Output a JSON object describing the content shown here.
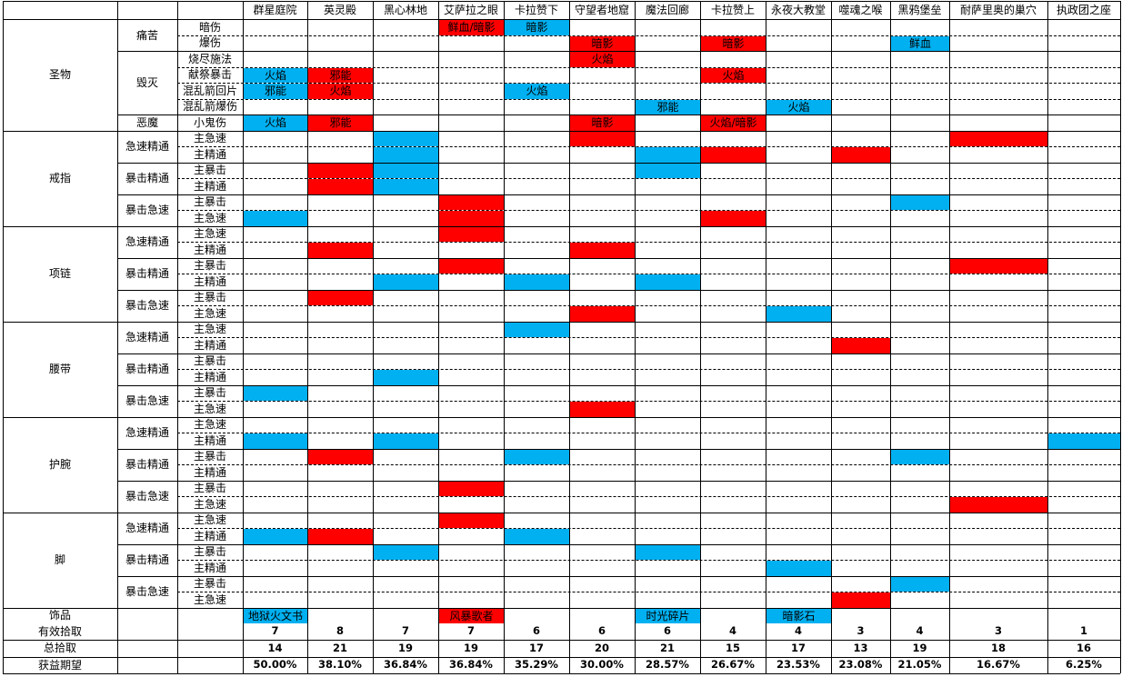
{
  "header": {
    "dungeons": [
      "群星庭院",
      "英灵殿",
      "黑心林地",
      "艾萨拉之眼",
      "卡拉赞下",
      "守望者地窟",
      "魔法回廊",
      "卡拉赞上",
      "永夜大教堂",
      "噬魂之喉",
      "黑鸦堡垒",
      "耐萨里奥的巢穴",
      "执政团之座"
    ]
  },
  "sections": [
    {
      "label": "圣物",
      "groups": [
        {
          "label": "痛苦",
          "rows": [
            "暗伤",
            "爆伤"
          ]
        },
        {
          "label": "毁灭",
          "rows": [
            "烧尽施法",
            "献祭暴击",
            "混乱箭回片",
            "混乱箭爆伤"
          ]
        },
        {
          "label": "恶魔",
          "rows": [
            "小鬼伤"
          ]
        }
      ]
    },
    {
      "label": "戒指",
      "groups": [
        {
          "label": "急速精通",
          "rows": [
            "主急速",
            "主精通"
          ]
        },
        {
          "label": "暴击精通",
          "rows": [
            "主暴击",
            "主精通"
          ]
        },
        {
          "label": "暴击急速",
          "rows": [
            "主暴击",
            "主急速"
          ]
        }
      ]
    },
    {
      "label": "项链",
      "groups": [
        {
          "label": "急速精通",
          "rows": [
            "主急速",
            "主精通"
          ]
        },
        {
          "label": "暴击精通",
          "rows": [
            "主暴击",
            "主精通"
          ]
        },
        {
          "label": "暴击急速",
          "rows": [
            "主暴击",
            "主急速"
          ]
        }
      ]
    },
    {
      "label": "腰带",
      "groups": [
        {
          "label": "急速精通",
          "rows": [
            "主急速",
            "主精通"
          ]
        },
        {
          "label": "暴击精通",
          "rows": [
            "主暴击",
            "主精通"
          ]
        },
        {
          "label": "暴击急速",
          "rows": [
            "主暴击",
            "主急速"
          ]
        }
      ]
    },
    {
      "label": "护腕",
      "groups": [
        {
          "label": "急速精通",
          "rows": [
            "主急速",
            "主精通"
          ]
        },
        {
          "label": "暴击精通",
          "rows": [
            "主暴击",
            "主精通"
          ]
        },
        {
          "label": "暴击急速",
          "rows": [
            "主暴击",
            "主急速"
          ]
        }
      ]
    },
    {
      "label": "脚",
      "groups": [
        {
          "label": "急速精通",
          "rows": [
            "主急速",
            "主精通"
          ]
        },
        {
          "label": "暴击精通",
          "rows": [
            "主暴击",
            "主精通"
          ]
        },
        {
          "label": "暴击急速",
          "rows": [
            "主暴击",
            "主急速"
          ]
        }
      ]
    }
  ],
  "trinket_row": {
    "label": "饰品"
  },
  "footer": [
    {
      "label": "有效拾取",
      "values": [
        "7",
        "8",
        "7",
        "7",
        "6",
        "6",
        "6",
        "4",
        "4",
        "3",
        "4",
        "3",
        "1"
      ]
    },
    {
      "label": "总拾取",
      "values": [
        "14",
        "21",
        "19",
        "19",
        "17",
        "20",
        "21",
        "15",
        "17",
        "13",
        "19",
        "18",
        "16"
      ]
    },
    {
      "label": "获益期望",
      "values": [
        "50.00%",
        "38.10%",
        "36.84%",
        "36.84%",
        "35.29%",
        "30.00%",
        "28.57%",
        "26.67%",
        "23.53%",
        "23.08%",
        "21.05%",
        "16.67%",
        "6.25%"
      ]
    }
  ],
  "colors": {
    "red": "#ff0000",
    "blue": "#00b0f0",
    "grid": "#000000"
  },
  "marks": [
    {
      "row": 0,
      "col": 3,
      "color": "red",
      "text": "鲜血/暗影"
    },
    {
      "row": 0,
      "col": 4,
      "color": "blue",
      "text": "暗影"
    },
    {
      "row": 1,
      "col": 5,
      "color": "red",
      "text": "暗影"
    },
    {
      "row": 1,
      "col": 7,
      "color": "red",
      "text": "暗影"
    },
    {
      "row": 1,
      "col": 10,
      "color": "blue",
      "text": "鲜血"
    },
    {
      "row": 2,
      "col": 5,
      "color": "red",
      "text": "火焰"
    },
    {
      "row": 3,
      "col": 0,
      "color": "blue",
      "text": "火焰"
    },
    {
      "row": 3,
      "col": 1,
      "color": "red",
      "text": "邪能"
    },
    {
      "row": 3,
      "col": 7,
      "color": "red",
      "text": "火焰"
    },
    {
      "row": 4,
      "col": 0,
      "color": "blue",
      "text": "邪能"
    },
    {
      "row": 4,
      "col": 1,
      "color": "red",
      "text": "火焰"
    },
    {
      "row": 4,
      "col": 4,
      "color": "blue",
      "text": "火焰"
    },
    {
      "row": 5,
      "col": 6,
      "color": "blue",
      "text": "邪能"
    },
    {
      "row": 5,
      "col": 8,
      "color": "blue",
      "text": "火焰"
    },
    {
      "row": 6,
      "col": 0,
      "color": "blue",
      "text": "火焰"
    },
    {
      "row": 6,
      "col": 1,
      "color": "red",
      "text": "邪能"
    },
    {
      "row": 6,
      "col": 5,
      "color": "red",
      "text": "暗影"
    },
    {
      "row": 6,
      "col": 7,
      "color": "red",
      "text": "火焰/暗影"
    },
    {
      "row": 7,
      "col": 5,
      "color": "red"
    },
    {
      "row": 7,
      "col": 11,
      "color": "red"
    },
    {
      "row": 7,
      "col": 2,
      "color": "blue"
    },
    {
      "row": 8,
      "col": 2,
      "color": "blue"
    },
    {
      "row": 8,
      "col": 6,
      "color": "blue"
    },
    {
      "row": 8,
      "col": 7,
      "color": "red"
    },
    {
      "row": 8,
      "col": 9,
      "color": "red"
    },
    {
      "row": 9,
      "col": 1,
      "color": "red"
    },
    {
      "row": 9,
      "col": 2,
      "color": "blue"
    },
    {
      "row": 9,
      "col": 6,
      "color": "blue"
    },
    {
      "row": 10,
      "col": 1,
      "color": "red"
    },
    {
      "row": 10,
      "col": 2,
      "color": "blue"
    },
    {
      "row": 11,
      "col": 3,
      "color": "red"
    },
    {
      "row": 11,
      "col": 10,
      "color": "blue"
    },
    {
      "row": 12,
      "col": 0,
      "color": "blue"
    },
    {
      "row": 12,
      "col": 3,
      "color": "red"
    },
    {
      "row": 12,
      "col": 7,
      "color": "red"
    },
    {
      "row": 13,
      "col": 3,
      "color": "red"
    },
    {
      "row": 14,
      "col": 1,
      "color": "red"
    },
    {
      "row": 14,
      "col": 5,
      "color": "red"
    },
    {
      "row": 15,
      "col": 3,
      "color": "red"
    },
    {
      "row": 15,
      "col": 11,
      "color": "red"
    },
    {
      "row": 16,
      "col": 2,
      "color": "blue"
    },
    {
      "row": 16,
      "col": 4,
      "color": "blue"
    },
    {
      "row": 16,
      "col": 6,
      "color": "blue"
    },
    {
      "row": 17,
      "col": 1,
      "color": "red"
    },
    {
      "row": 18,
      "col": 5,
      "color": "red"
    },
    {
      "row": 18,
      "col": 8,
      "color": "blue"
    },
    {
      "row": 19,
      "col": 4,
      "color": "blue"
    },
    {
      "row": 20,
      "col": 9,
      "color": "red"
    },
    {
      "row": 22,
      "col": 2,
      "color": "blue"
    },
    {
      "row": 23,
      "col": 0,
      "color": "blue"
    },
    {
      "row": 24,
      "col": 5,
      "color": "red"
    },
    {
      "row": 26,
      "col": 0,
      "color": "blue"
    },
    {
      "row": 26,
      "col": 2,
      "color": "blue"
    },
    {
      "row": 26,
      "col": 12,
      "color": "blue"
    },
    {
      "row": 27,
      "col": 1,
      "color": "red"
    },
    {
      "row": 27,
      "col": 4,
      "color": "blue"
    },
    {
      "row": 27,
      "col": 10,
      "color": "blue"
    },
    {
      "row": 29,
      "col": 3,
      "color": "red"
    },
    {
      "row": 30,
      "col": 11,
      "color": "red"
    },
    {
      "row": 31,
      "col": 3,
      "color": "red"
    },
    {
      "row": 32,
      "col": 0,
      "color": "blue"
    },
    {
      "row": 32,
      "col": 1,
      "color": "red"
    },
    {
      "row": 32,
      "col": 4,
      "color": "blue"
    },
    {
      "row": 33,
      "col": 2,
      "color": "blue"
    },
    {
      "row": 33,
      "col": 6,
      "color": "blue"
    },
    {
      "row": 34,
      "col": 8,
      "color": "blue"
    },
    {
      "row": 35,
      "col": 10,
      "color": "blue"
    },
    {
      "row": 36,
      "col": 9,
      "color": "red"
    },
    {
      "row": 37,
      "col": 0,
      "color": "blue",
      "text": "地狱火文书"
    },
    {
      "row": 37,
      "col": 3,
      "color": "red",
      "text": "风暴歌者"
    },
    {
      "row": 37,
      "col": 6,
      "color": "blue",
      "text": "时光碎片"
    },
    {
      "row": 37,
      "col": 8,
      "color": "blue",
      "text": "暗影石"
    }
  ]
}
